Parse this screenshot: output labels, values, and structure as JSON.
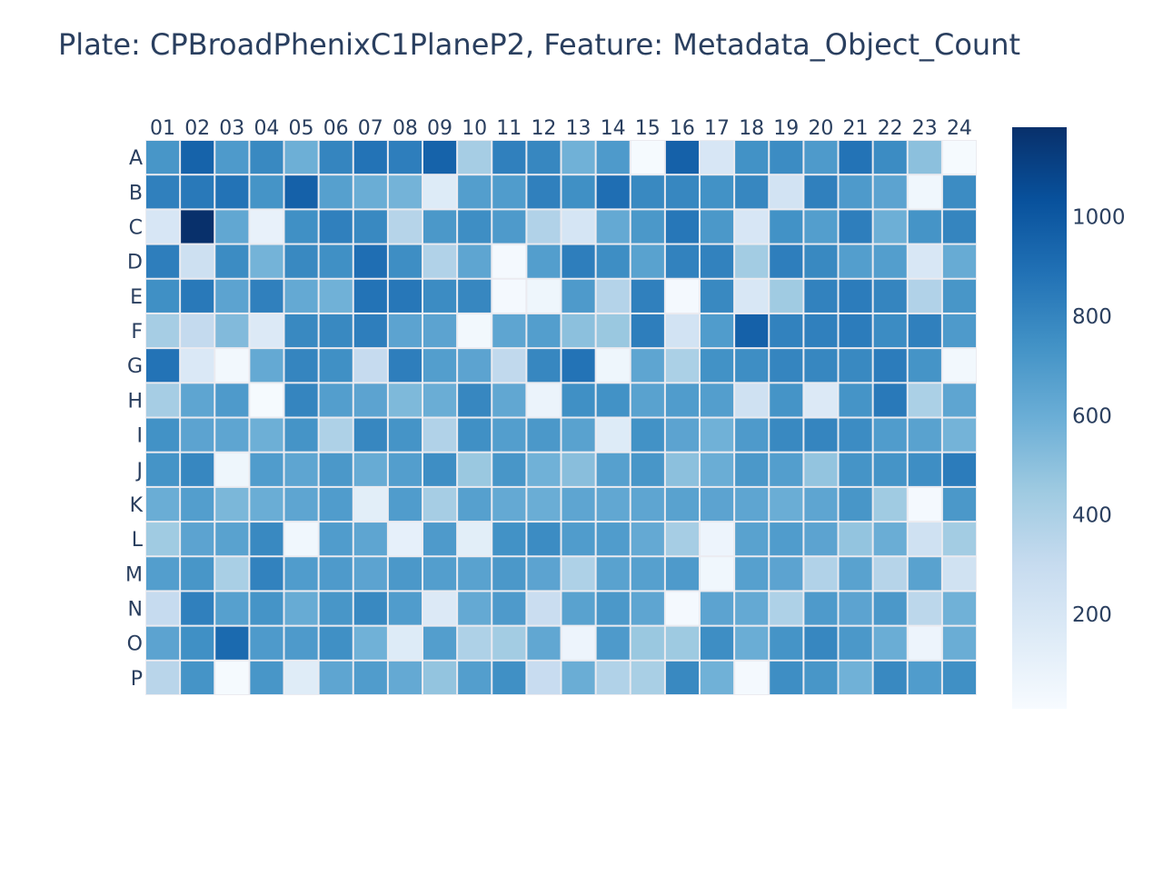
{
  "chart_data": {
    "type": "heatmap",
    "title": "Plate: CPBroadPhenixC1PlaneP2, Feature: Metadata_Object_Count",
    "x_categories": [
      "01",
      "02",
      "03",
      "04",
      "05",
      "06",
      "07",
      "08",
      "09",
      "10",
      "11",
      "12",
      "13",
      "14",
      "15",
      "16",
      "17",
      "18",
      "19",
      "20",
      "21",
      "22",
      "23",
      "24"
    ],
    "y_categories": [
      "A",
      "B",
      "C",
      "D",
      "E",
      "F",
      "G",
      "H",
      "I",
      "J",
      "K",
      "L",
      "M",
      "N",
      "O",
      "P"
    ],
    "z": [
      [
        720,
        950,
        700,
        780,
        590,
        800,
        880,
        830,
        950,
        420,
        820,
        790,
        580,
        700,
        20,
        960,
        200,
        740,
        770,
        700,
        880,
        770,
        500,
        20
      ],
      [
        820,
        850,
        880,
        730,
        960,
        670,
        600,
        570,
        160,
        680,
        690,
        820,
        750,
        900,
        780,
        790,
        740,
        790,
        230,
        820,
        700,
        650,
        50,
        770
      ],
      [
        200,
        1180,
        630,
        100,
        750,
        820,
        780,
        360,
        710,
        760,
        700,
        380,
        210,
        620,
        710,
        860,
        710,
        200,
        740,
        680,
        830,
        590,
        730,
        800
      ],
      [
        830,
        260,
        770,
        570,
        780,
        750,
        900,
        760,
        380,
        640,
        30,
        680,
        830,
        760,
        660,
        810,
        810,
        430,
        830,
        780,
        680,
        680,
        190,
        610
      ],
      [
        750,
        850,
        650,
        820,
        620,
        580,
        880,
        860,
        770,
        790,
        30,
        60,
        700,
        370,
        820,
        30,
        780,
        190,
        440,
        810,
        840,
        800,
        380,
        720
      ],
      [
        420,
        310,
        530,
        170,
        780,
        780,
        830,
        650,
        650,
        40,
        640,
        680,
        500,
        460,
        830,
        230,
        690,
        960,
        810,
        820,
        840,
        770,
        820,
        700
      ],
      [
        880,
        180,
        40,
        620,
        800,
        750,
        300,
        830,
        680,
        650,
        320,
        790,
        880,
        60,
        640,
        400,
        740,
        760,
        800,
        790,
        780,
        840,
        730,
        40
      ],
      [
        420,
        640,
        700,
        20,
        800,
        680,
        650,
        540,
        600,
        790,
        630,
        80,
        750,
        740,
        660,
        690,
        680,
        250,
        730,
        170,
        730,
        850,
        400,
        640
      ],
      [
        740,
        650,
        640,
        590,
        730,
        390,
        790,
        730,
        380,
        750,
        680,
        710,
        660,
        160,
        740,
        650,
        580,
        700,
        780,
        800,
        770,
        690,
        660,
        570
      ],
      [
        730,
        790,
        60,
        690,
        640,
        710,
        610,
        680,
        760,
        460,
        720,
        580,
        510,
        670,
        720,
        500,
        600,
        710,
        680,
        480,
        730,
        730,
        760,
        840
      ],
      [
        600,
        680,
        550,
        600,
        640,
        690,
        130,
        690,
        420,
        670,
        620,
        600,
        640,
        630,
        640,
        660,
        650,
        640,
        600,
        640,
        720,
        440,
        30,
        710
      ],
      [
        440,
        650,
        660,
        780,
        50,
        690,
        640,
        110,
        700,
        130,
        740,
        770,
        690,
        690,
        620,
        420,
        70,
        660,
        690,
        650,
        480,
        600,
        250,
        430
      ],
      [
        680,
        720,
        410,
        810,
        690,
        700,
        650,
        710,
        680,
        660,
        710,
        650,
        390,
        660,
        670,
        700,
        50,
        670,
        650,
        380,
        660,
        360,
        660,
        240
      ],
      [
        300,
        820,
        670,
        730,
        610,
        720,
        780,
        690,
        170,
        620,
        700,
        280,
        660,
        710,
        640,
        30,
        650,
        620,
        390,
        700,
        650,
        710,
        340,
        580
      ],
      [
        650,
        750,
        920,
        700,
        700,
        750,
        580,
        160,
        680,
        390,
        430,
        630,
        70,
        700,
        460,
        450,
        760,
        600,
        730,
        790,
        710,
        600,
        70,
        600
      ],
      [
        350,
        730,
        20,
        720,
        150,
        640,
        690,
        620,
        480,
        680,
        750,
        290,
        600,
        380,
        410,
        780,
        580,
        30,
        760,
        720,
        580,
        780,
        690,
        750
      ]
    ],
    "zmin": 10,
    "zmax": 1180,
    "colorscale": [
      "#f7fbff",
      "#deebf7",
      "#c6dbef",
      "#9ecae1",
      "#6baed6",
      "#4292c6",
      "#2171b5",
      "#08519c",
      "#08306b"
    ],
    "colorbar_ticks": [
      200,
      400,
      600,
      800,
      1000
    ],
    "cell_gap_color": "#ebebf0"
  }
}
